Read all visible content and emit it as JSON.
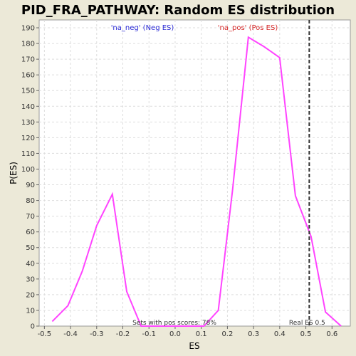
{
  "chart_data": {
    "type": "line",
    "title": "PID_FRA_PATHWAY: Random ES distribution",
    "xlabel": "ES",
    "ylabel": "P(ES)",
    "xlim": [
      -0.52,
      0.67
    ],
    "ylim": [
      0,
      195
    ],
    "x_ticks": [
      -0.5,
      -0.4,
      -0.3,
      -0.2,
      -0.1,
      0.0,
      0.1,
      0.2,
      0.3,
      0.4,
      0.5,
      0.6
    ],
    "x_tick_labels": [
      "-0.5",
      "-0.4",
      "-0.3",
      "-0.2",
      "-0.1",
      "0.0",
      "0.1",
      "0.2",
      "0.3",
      "0.4",
      "0.5",
      "0.6"
    ],
    "y_ticks": [
      0,
      10,
      20,
      30,
      40,
      50,
      60,
      70,
      80,
      90,
      100,
      110,
      120,
      130,
      140,
      150,
      160,
      170,
      180,
      190
    ],
    "grid": true,
    "series": [
      {
        "color": "#ff44ff",
        "x": [
          -0.47,
          -0.41,
          -0.355,
          -0.3,
          -0.24,
          -0.185,
          -0.13,
          -0.07,
          -0.01,
          0.05,
          0.11,
          0.165,
          0.22,
          0.28,
          0.34,
          0.4,
          0.46,
          0.52,
          0.575,
          0.635
        ],
        "y": [
          3,
          13,
          35,
          64,
          84,
          22,
          0,
          0,
          0,
          0,
          0,
          10,
          87,
          184,
          178,
          171,
          83,
          57,
          9,
          0
        ]
      }
    ],
    "legend": {
      "neg_label": "'na_neg' (Neg ES)",
      "neg_color": "#2b2bd6",
      "pos_label": "'na_pos' (Pos ES)",
      "pos_color": "#d62b2b"
    },
    "real_es": {
      "value": 0.513,
      "label": "Real ES 0.5"
    },
    "annotation": "Sets with pos scores: 78%"
  }
}
